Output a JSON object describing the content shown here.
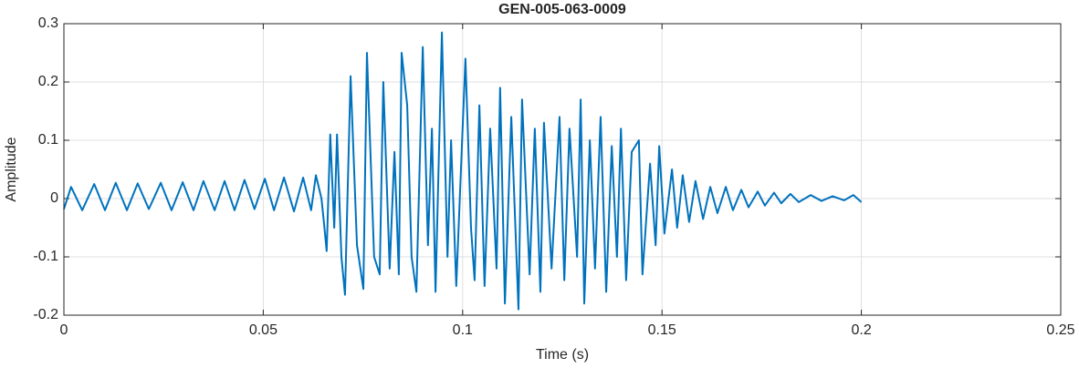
{
  "chart_data": {
    "type": "line",
    "title": "GEN-005-063-0009",
    "xlabel": "Time (s)",
    "ylabel": "Amplitude",
    "color": "#0072bd",
    "grid": true,
    "xlim": [
      0,
      0.25
    ],
    "xticks": [
      0,
      0.05,
      0.1,
      0.15,
      0.2,
      0.25
    ],
    "ylim": [
      -0.2,
      0.3
    ],
    "yticks": [
      -0.2,
      -0.1,
      0,
      0.1,
      0.2,
      0.3
    ],
    "x": [
      0,
      0.0018,
      0.0046,
      0.0076,
      0.0103,
      0.013,
      0.0158,
      0.0185,
      0.0213,
      0.0243,
      0.027,
      0.0298,
      0.0325,
      0.035,
      0.0378,
      0.0403,
      0.0428,
      0.0453,
      0.0478,
      0.0504,
      0.0527,
      0.0552,
      0.0577,
      0.06,
      0.062,
      0.0632,
      0.0646,
      0.0652,
      0.0659,
      0.0668,
      0.0678,
      0.0685,
      0.0696,
      0.0705,
      0.0719,
      0.0735,
      0.0751,
      0.076,
      0.0778,
      0.0792,
      0.0801,
      0.0817,
      0.0829,
      0.084,
      0.0847,
      0.0861,
      0.0872,
      0.0884,
      0.09,
      0.0913,
      0.0923,
      0.0932,
      0.0948,
      0.0962,
      0.0971,
      0.0984,
      0.1007,
      0.1021,
      0.103,
      0.1042,
      0.1055,
      0.1069,
      0.1085,
      0.1094,
      0.1106,
      0.1122,
      0.114,
      0.1149,
      0.1168,
      0.1181,
      0.1195,
      0.1204,
      0.1223,
      0.1243,
      0.1255,
      0.1268,
      0.1287,
      0.1296,
      0.1305,
      0.1319,
      0.1332,
      0.1346,
      0.136,
      0.1374,
      0.1387,
      0.1397,
      0.141,
      0.1424,
      0.1442,
      0.1451,
      0.147,
      0.1484,
      0.1493,
      0.1506,
      0.1525,
      0.1538,
      0.1552,
      0.1568,
      0.1584,
      0.1603,
      0.1621,
      0.1639,
      0.166,
      0.1678,
      0.1699,
      0.1717,
      0.174,
      0.1758,
      0.1781,
      0.1799,
      0.1822,
      0.1843,
      0.1873,
      0.19,
      0.1928,
      0.1957,
      0.198,
      0.2
    ],
    "values": [
      -0.018,
      0.02,
      -0.02,
      0.025,
      -0.02,
      0.027,
      -0.02,
      0.026,
      -0.018,
      0.027,
      -0.02,
      0.028,
      -0.02,
      0.03,
      -0.02,
      0.03,
      -0.02,
      0.032,
      -0.018,
      0.034,
      -0.02,
      0.036,
      -0.022,
      0.036,
      -0.02,
      0.04,
      0.0,
      -0.04,
      -0.09,
      0.11,
      -0.05,
      0.11,
      -0.1,
      -0.165,
      0.21,
      -0.08,
      -0.155,
      0.25,
      -0.1,
      -0.13,
      0.2,
      -0.12,
      0.08,
      -0.13,
      0.25,
      0.16,
      -0.1,
      -0.16,
      0.26,
      -0.08,
      0.12,
      -0.16,
      0.285,
      -0.1,
      0.1,
      -0.15,
      0.24,
      -0.05,
      -0.14,
      0.16,
      -0.15,
      0.12,
      -0.12,
      0.19,
      -0.18,
      0.14,
      -0.19,
      0.17,
      -0.13,
      0.12,
      -0.16,
      0.13,
      -0.12,
      0.14,
      -0.14,
      0.12,
      -0.1,
      0.17,
      -0.18,
      0.1,
      -0.12,
      0.14,
      -0.16,
      0.09,
      -0.1,
      0.12,
      -0.14,
      0.08,
      0.1,
      -0.13,
      0.06,
      -0.08,
      0.09,
      -0.06,
      0.05,
      -0.05,
      0.04,
      -0.04,
      0.03,
      -0.035,
      0.02,
      -0.025,
      0.02,
      -0.02,
      0.015,
      -0.015,
      0.012,
      -0.012,
      0.01,
      -0.008,
      0.008,
      -0.006,
      0.006,
      -0.004,
      0.004,
      -0.003,
      0.006,
      -0.006
    ]
  }
}
